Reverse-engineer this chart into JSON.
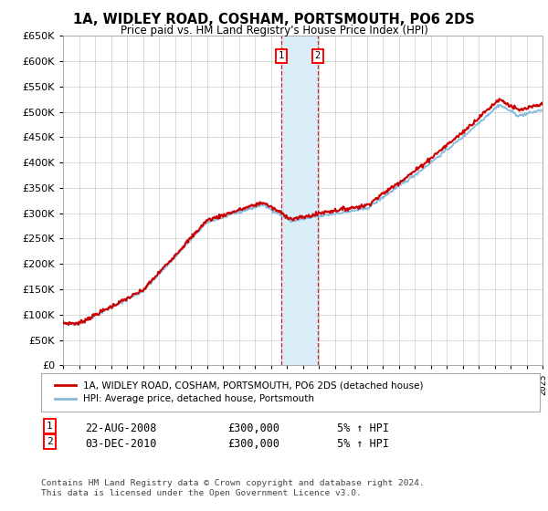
{
  "title": "1A, WIDLEY ROAD, COSHAM, PORTSMOUTH, PO6 2DS",
  "subtitle": "Price paid vs. HM Land Registry's House Price Index (HPI)",
  "legend_line1": "1A, WIDLEY ROAD, COSHAM, PORTSMOUTH, PO6 2DS (detached house)",
  "legend_line2": "HPI: Average price, detached house, Portsmouth",
  "transaction1_date": "22-AUG-2008",
  "transaction1_price": "£300,000",
  "transaction1_hpi": "5% ↑ HPI",
  "transaction2_date": "03-DEC-2010",
  "transaction2_price": "£300,000",
  "transaction2_hpi": "5% ↑ HPI",
  "footer": "Contains HM Land Registry data © Crown copyright and database right 2024.\nThis data is licensed under the Open Government Licence v3.0.",
  "price_line_color": "#cc0000",
  "hpi_line_color": "#88bbdd",
  "marker1_x": 2008.65,
  "marker2_x": 2010.92,
  "ylim_min": 0,
  "ylim_max": 650000,
  "xlim_min": 1995,
  "xlim_max": 2025,
  "background_color": "#ffffff",
  "grid_color": "#cccccc",
  "shade_color": "#daeef8"
}
